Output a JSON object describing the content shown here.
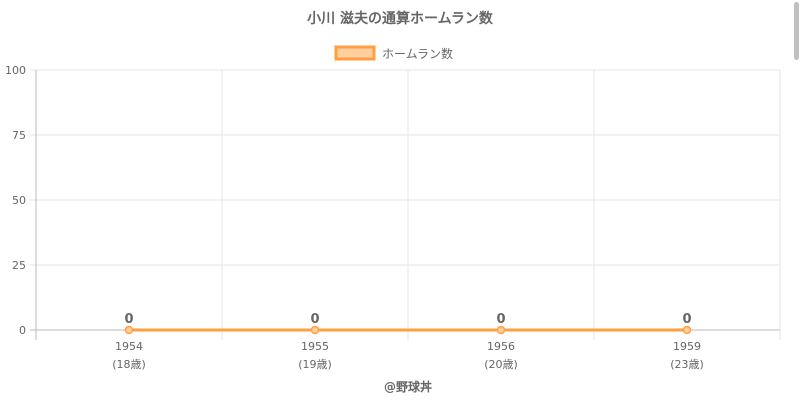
{
  "chart_data": {
    "type": "line",
    "title": "小川 滋夫の通算ホームラン数",
    "categories": [
      "1954",
      "1955",
      "1956",
      "1959"
    ],
    "sub_labels": [
      "(18歳)",
      "(19歳)",
      "(20歳)",
      "(23歳)"
    ],
    "series": [
      {
        "name": "ホームラン数",
        "values": [
          0,
          0,
          0,
          0
        ],
        "color": "#ff9f40",
        "fill": "#ffcf9f"
      }
    ],
    "data_labels": [
      "0",
      "0",
      "0",
      "0"
    ],
    "ylim": [
      0,
      100
    ],
    "yticks": [
      "0",
      "25",
      "50",
      "75",
      "100"
    ],
    "grid": true,
    "legend": "top"
  },
  "credit": "@野球丼"
}
